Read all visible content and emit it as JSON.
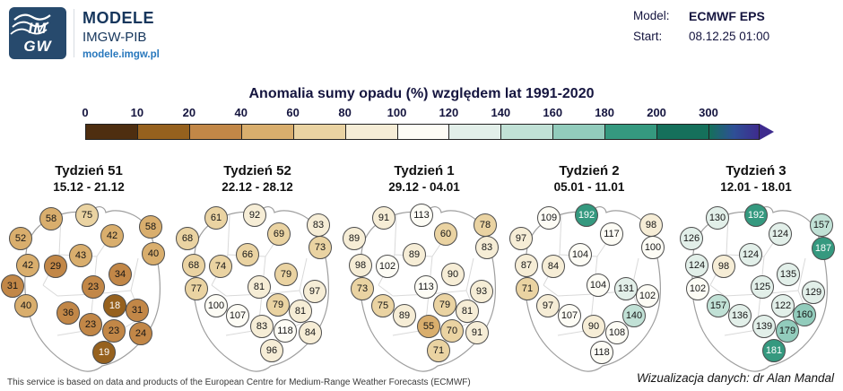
{
  "header": {
    "logo_line1": "IM",
    "logo_line2": "GW",
    "brand": "MODELE",
    "brand_sub": "IMGW-PIB",
    "url": "modele.imgw.pl",
    "model_label": "Model:",
    "model_value": "ECMWF EPS",
    "start_label": "Start:",
    "start_value": "08.12.25 01:00"
  },
  "footer": {
    "disclaimer": "This service is based on data and products of the European Centre for Medium-Range Weather Forecasts (ECMWF)",
    "credit": "Wizualizacja danych: dr Alan Mandal"
  },
  "chart_data": {
    "type": "scatter",
    "subtype": "precipitation-anomaly-bubbles-on-poland-maps",
    "title": "Anomalia sumy opadu (%) względem lat 1991-2020",
    "colorbar": {
      "ticks": [
        0,
        10,
        20,
        40,
        60,
        80,
        100,
        120,
        140,
        160,
        180,
        200,
        300
      ],
      "segment_colors": [
        "#4e2e10",
        "#96611e",
        "#c28747",
        "#d9ae6d",
        "#ead3a2",
        "#f6edd6",
        "#fdfcf5",
        "#e2efe9",
        "#c1e1d6",
        "#92ccbc",
        "#35997f",
        "#15705b"
      ],
      "overflow_colors": [
        "#15705b",
        "#2e4f96",
        "#3e2b8e"
      ],
      "arrow_color": "#3e2b8e"
    },
    "maps": [
      {
        "title": "Tydzień 51",
        "dates": "15.12 - 21.12",
        "stations": [
          [
            57,
            244,
            58
          ],
          [
            97,
            240,
            75
          ],
          [
            125,
            263,
            42
          ],
          [
            168,
            253,
            58
          ],
          [
            23,
            266,
            52
          ],
          [
            90,
            285,
            43
          ],
          [
            171,
            283,
            40
          ],
          [
            31,
            296,
            42
          ],
          [
            62,
            297,
            29
          ],
          [
            134,
            306,
            34
          ],
          [
            14,
            319,
            31
          ],
          [
            104,
            320,
            23
          ],
          [
            29,
            341,
            40
          ],
          [
            76,
            349,
            36
          ],
          [
            128,
            341,
            18
          ],
          [
            153,
            346,
            31
          ],
          [
            101,
            362,
            23
          ],
          [
            127,
            369,
            23
          ],
          [
            157,
            372,
            24
          ],
          [
            116,
            393,
            19
          ]
        ]
      },
      {
        "title": "Tydzień 52",
        "dates": "22.12 - 28.12",
        "stations": [
          [
            241,
            243,
            61
          ],
          [
            284,
            240,
            92
          ],
          [
            311,
            261,
            69
          ],
          [
            355,
            251,
            83
          ],
          [
            209,
            266,
            68
          ],
          [
            276,
            284,
            66
          ],
          [
            357,
            276,
            73
          ],
          [
            216,
            296,
            68
          ],
          [
            246,
            297,
            74
          ],
          [
            319,
            306,
            79
          ],
          [
            219,
            322,
            77
          ],
          [
            289,
            320,
            81
          ],
          [
            241,
            341,
            100
          ],
          [
            265,
            352,
            107
          ],
          [
            310,
            340,
            79
          ],
          [
            351,
            325,
            97
          ],
          [
            335,
            347,
            81
          ],
          [
            292,
            364,
            83
          ],
          [
            318,
            369,
            118
          ],
          [
            346,
            371,
            84
          ],
          [
            303,
            391,
            96
          ]
        ]
      },
      {
        "title": "Tydzień 1",
        "dates": "29.12 - 04.01",
        "stations": [
          [
            428,
            243,
            91
          ],
          [
            470,
            240,
            113
          ],
          [
            497,
            261,
            60
          ],
          [
            541,
            251,
            78
          ],
          [
            395,
            266,
            89
          ],
          [
            462,
            284,
            89
          ],
          [
            543,
            276,
            83
          ],
          [
            402,
            296,
            98
          ],
          [
            432,
            297,
            102
          ],
          [
            505,
            306,
            90
          ],
          [
            404,
            322,
            73
          ],
          [
            475,
            320,
            113
          ],
          [
            427,
            341,
            75
          ],
          [
            451,
            352,
            89
          ],
          [
            496,
            340,
            79
          ],
          [
            537,
            325,
            93
          ],
          [
            521,
            347,
            81
          ],
          [
            478,
            364,
            55
          ],
          [
            504,
            369,
            70
          ],
          [
            532,
            371,
            91
          ],
          [
            489,
            391,
            71
          ]
        ]
      },
      {
        "title": "Tydzień 2",
        "dates": "05.01 - 11.01",
        "stations": [
          [
            612,
            243,
            109
          ],
          [
            654,
            240,
            192
          ],
          [
            682,
            261,
            117
          ],
          [
            726,
            251,
            98
          ],
          [
            581,
            266,
            97
          ],
          [
            647,
            284,
            104
          ],
          [
            728,
            276,
            100
          ],
          [
            587,
            296,
            87
          ],
          [
            617,
            297,
            84
          ],
          [
            667,
            318,
            104
          ],
          [
            698,
            322,
            131
          ],
          [
            588,
            322,
            71
          ],
          [
            611,
            341,
            97
          ],
          [
            635,
            352,
            107
          ],
          [
            722,
            330,
            102
          ],
          [
            707,
            352,
            140
          ],
          [
            662,
            364,
            90
          ],
          [
            688,
            371,
            108
          ],
          [
            671,
            393,
            118
          ]
        ]
      },
      {
        "title": "Tydzień 3",
        "dates": "12.01 - 18.01",
        "stations": [
          [
            800,
            243,
            130
          ],
          [
            843,
            240,
            192
          ],
          [
            870,
            261,
            124
          ],
          [
            916,
            251,
            157
          ],
          [
            771,
            266,
            126
          ],
          [
            837,
            284,
            124
          ],
          [
            918,
            277,
            187
          ],
          [
            777,
            296,
            124
          ],
          [
            807,
            297,
            98
          ],
          [
            879,
            306,
            135
          ],
          [
            778,
            322,
            102
          ],
          [
            850,
            320,
            125
          ],
          [
            801,
            341,
            157
          ],
          [
            825,
            352,
            136
          ],
          [
            873,
            341,
            122
          ],
          [
            907,
            326,
            129
          ],
          [
            897,
            351,
            160
          ],
          [
            852,
            364,
            139
          ],
          [
            878,
            369,
            179
          ],
          [
            863,
            391,
            181
          ]
        ]
      }
    ]
  }
}
